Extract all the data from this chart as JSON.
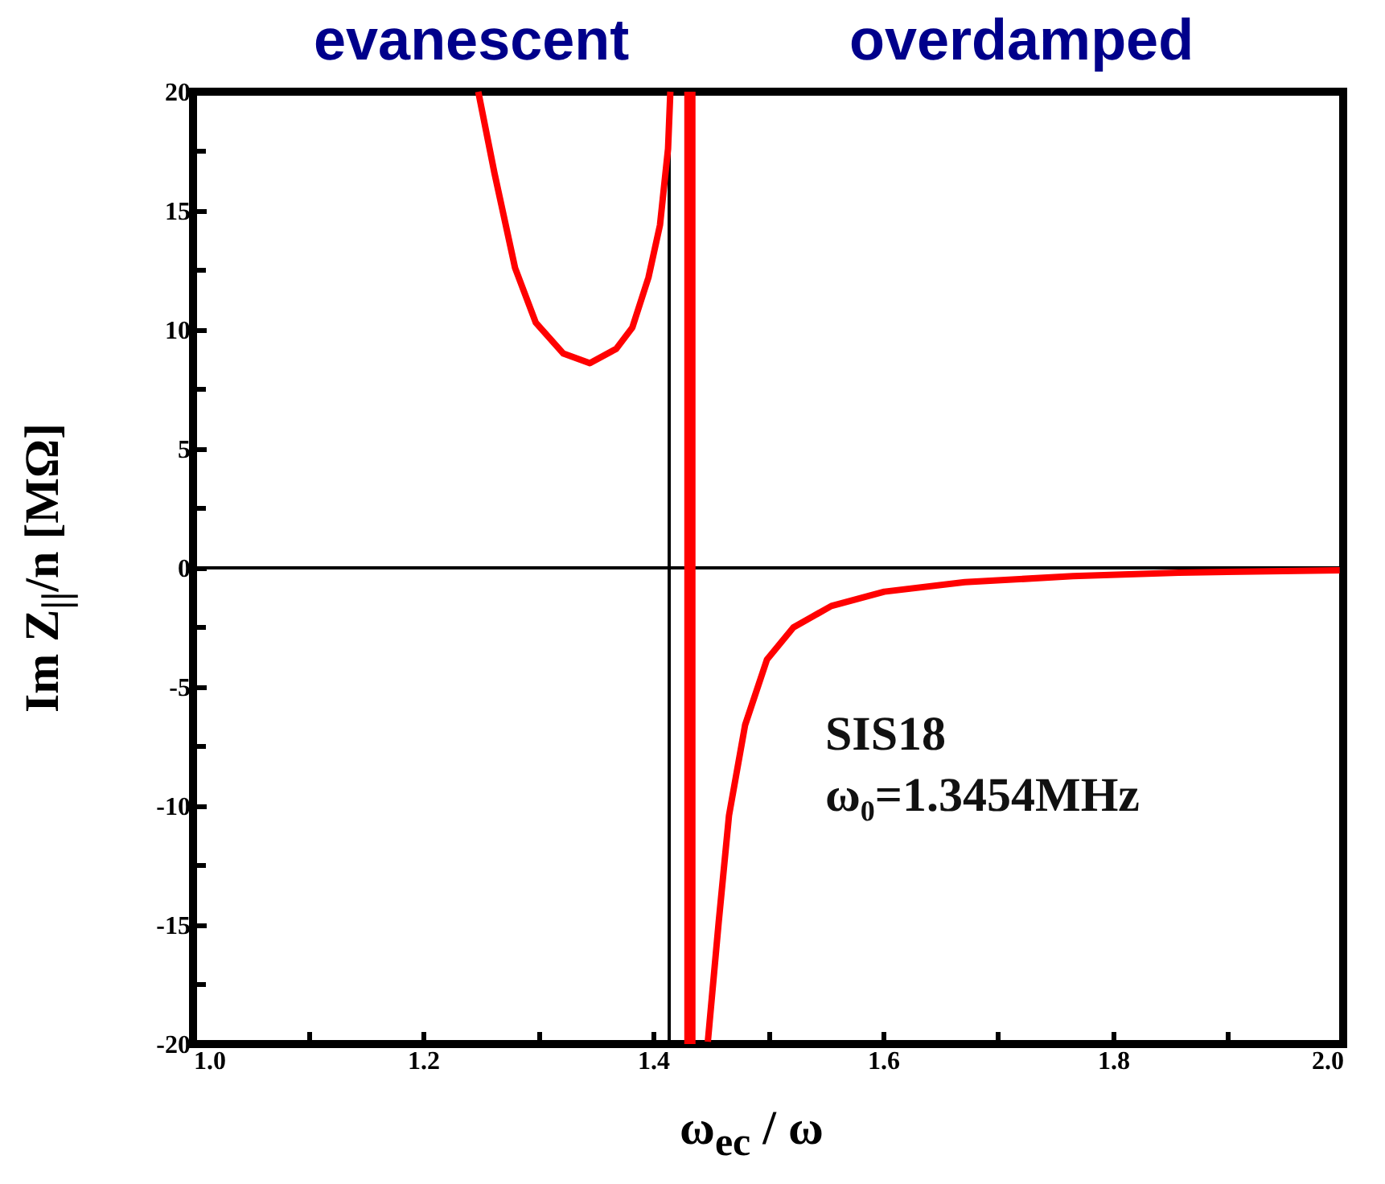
{
  "chart_data": {
    "type": "line",
    "title": null,
    "annotations": [
      "evanescent",
      "overdamped",
      "SIS18",
      "ω₀=1.3454MHz"
    ],
    "xlabel": "ω$_{ec}$ / ω",
    "ylabel": "Im Z$_{||}$/n [MΩ]",
    "series": [
      {
        "color": "#ff0000",
        "x": [
          1.248,
          1.262,
          1.28,
          1.298,
          1.322,
          1.345,
          1.368,
          1.382,
          1.396,
          1.406,
          1.413,
          1.415,
          1.43,
          1.4476,
          1.457,
          1.466,
          1.48,
          1.499,
          1.522,
          1.555,
          1.601,
          1.671,
          1.765,
          1.857,
          1.997
        ],
        "values": [
          20,
          16.6,
          12.6,
          10.3,
          9.0,
          8.6,
          9.2,
          10.1,
          12.2,
          14.4,
          17.6,
          20,
          null,
          -19.9,
          -14.9,
          -10.4,
          -6.6,
          -3.85,
          -2.5,
          -1.6,
          -1.0,
          -0.6,
          -0.35,
          -0.2,
          -0.1
        ]
      }
    ],
    "xlim": [
      1.0,
      2.0
    ],
    "ylim": [
      -20,
      20
    ],
    "xticks": [
      {
        "value": 1.0,
        "label": "1.0"
      },
      {
        "value": 1.1,
        "label": null
      },
      {
        "value": 1.2,
        "label": "1.2"
      },
      {
        "value": 1.3,
        "label": null
      },
      {
        "value": 1.4,
        "label": "1.4"
      },
      {
        "value": 1.5,
        "label": null
      },
      {
        "value": 1.6,
        "label": "1.6"
      },
      {
        "value": 1.7,
        "label": null
      },
      {
        "value": 1.8,
        "label": "1.8"
      },
      {
        "value": 1.9,
        "label": null
      },
      {
        "value": 2.0,
        "label": "2.0"
      }
    ],
    "yticks": [
      -20,
      {
        "value": -17.5,
        "label": null
      },
      -15,
      {
        "value": -12.5,
        "label": null
      },
      -10,
      {
        "value": -7.5,
        "label": null
      },
      -5,
      {
        "value": -2.5,
        "label": null
      },
      0,
      {
        "value": 2.5,
        "label": null
      },
      5,
      {
        "value": 7.5,
        "label": null
      },
      10,
      {
        "value": 12.5,
        "label": null
      },
      15,
      {
        "value": 17.5,
        "label": null
      },
      20
    ],
    "ref_lines": [
      {
        "axis": "y",
        "value": 0,
        "color": "#000000"
      },
      {
        "axis": "x",
        "value": 1.414,
        "color": "#000000"
      },
      {
        "axis": "x",
        "value": 1.432,
        "color": "#ff0000"
      }
    ],
    "marker": "none",
    "line_style": "solid"
  }
}
